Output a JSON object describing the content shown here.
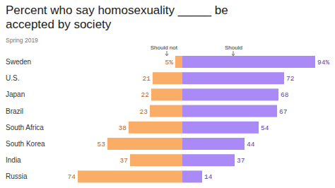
{
  "chart_data": {
    "type": "bar",
    "orientation": "horizontal",
    "diverging": true,
    "title": "Percent who say homosexuality _____ be accepted by society",
    "subtitle": "Spring 2019",
    "categories": [
      "Sweden",
      "U.S.",
      "Japan",
      "Brazil",
      "South Africa",
      "South Korea",
      "India",
      "Russia"
    ],
    "series": [
      {
        "name": "Should not",
        "color": "#f9ad66",
        "values": [
          5,
          21,
          22,
          23,
          38,
          53,
          37,
          74
        ],
        "value_labels": [
          "5%",
          "21",
          "22",
          "23",
          "38",
          "53",
          "37",
          "74"
        ]
      },
      {
        "name": "Should",
        "color": "#a98af6",
        "values": [
          94,
          72,
          68,
          67,
          54,
          44,
          37,
          14
        ],
        "value_labels": [
          "94%",
          "72",
          "68",
          "67",
          "54",
          "44",
          "37",
          "14"
        ]
      }
    ],
    "xlim": [
      -100,
      100
    ],
    "tick_labels": false,
    "data_labels": true,
    "legend": "top"
  }
}
